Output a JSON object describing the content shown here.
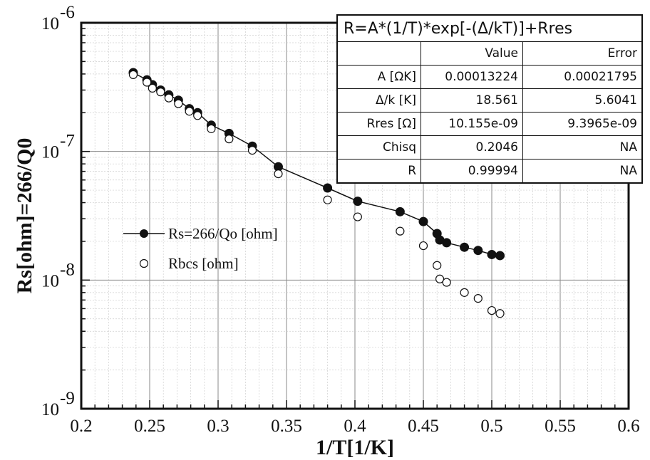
{
  "chart_data": {
    "type": "scatter",
    "xlabel": "1/T[1/K]",
    "ylabel": "Rs[ohm]=266/Q0",
    "xlim": [
      0.2,
      0.6
    ],
    "ylim": [
      1e-09,
      1e-06
    ],
    "yscale": "log",
    "x_ticks": [
      "0.2",
      "0.25",
      "0.3",
      "0.35",
      "0.4",
      "0.45",
      "0.5",
      "0.55",
      "0.6"
    ],
    "y_ticks": [
      {
        "base": "10",
        "exp": "-9",
        "value": 1e-09
      },
      {
        "base": "10",
        "exp": "-8",
        "value": 1e-08
      },
      {
        "base": "10",
        "exp": "-7",
        "value": 1e-07
      },
      {
        "base": "10",
        "exp": "-6",
        "value": 1e-06
      }
    ],
    "grid": true,
    "legend_position": "middle-left",
    "series": [
      {
        "name": "Rs=266/Qo [ohm]",
        "marker": "filled-circle",
        "line": true,
        "x": [
          0.238,
          0.248,
          0.252,
          0.258,
          0.264,
          0.271,
          0.279,
          0.285,
          0.295,
          0.308,
          0.325,
          0.344,
          0.38,
          0.402,
          0.433,
          0.45,
          0.46,
          0.462,
          0.467,
          0.48,
          0.49,
          0.5,
          0.506
        ],
        "y": [
          4.1e-07,
          3.6e-07,
          3.3e-07,
          3e-07,
          2.75e-07,
          2.5e-07,
          2.15e-07,
          2e-07,
          1.6e-07,
          1.38e-07,
          1.1e-07,
          7.6e-08,
          5.2e-08,
          4.1e-08,
          3.4e-08,
          2.85e-08,
          2.3e-08,
          2.05e-08,
          1.95e-08,
          1.8e-08,
          1.7e-08,
          1.58e-08,
          1.55e-08
        ]
      },
      {
        "name": "Rbcs [ohm]",
        "marker": "open-circle",
        "line": false,
        "x": [
          0.238,
          0.248,
          0.252,
          0.258,
          0.264,
          0.271,
          0.279,
          0.285,
          0.295,
          0.308,
          0.325,
          0.344,
          0.38,
          0.402,
          0.433,
          0.45,
          0.46,
          0.462,
          0.467,
          0.48,
          0.49,
          0.5,
          0.506
        ],
        "y": [
          3.95e-07,
          3.45e-07,
          3.1e-07,
          2.9e-07,
          2.6e-07,
          2.35e-07,
          2.05e-07,
          1.9e-07,
          1.5e-07,
          1.25e-07,
          1.02e-07,
          6.7e-08,
          4.2e-08,
          3.1e-08,
          2.4e-08,
          1.85e-08,
          1.3e-08,
          1.02e-08,
          9.6e-09,
          8e-09,
          7.2e-09,
          5.8e-09,
          5.5e-09
        ]
      }
    ],
    "fit_table": {
      "equation": "R=A*(1/T)*exp[-(Δ/kT)]+Rres",
      "header": [
        "",
        "Value",
        "Error"
      ],
      "rows": [
        [
          "A [ΩK]",
          "0.00013224",
          "0.00021795"
        ],
        [
          "Δ/k [K]",
          "18.561",
          "5.6041"
        ],
        [
          "Rres [Ω]",
          "10.155e-09",
          "9.3965e-09"
        ],
        [
          "Chisq",
          "0.2046",
          "NA"
        ],
        [
          "R",
          "0.99994",
          "NA"
        ]
      ]
    }
  }
}
